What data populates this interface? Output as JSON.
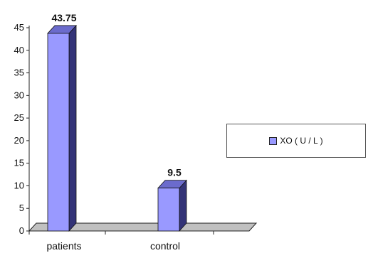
{
  "chart_data": {
    "type": "bar",
    "title": "",
    "xlabel": "",
    "ylabel": "",
    "categories": [
      "patients",
      "control"
    ],
    "series": [
      {
        "name": "XO ( U / L )",
        "values": [
          43.75,
          9.5
        ]
      }
    ],
    "data_labels": [
      "43.75",
      "9.5"
    ],
    "ylim": [
      0,
      45
    ],
    "yticks": [
      0,
      5,
      10,
      15,
      20,
      25,
      30,
      35,
      40,
      45
    ],
    "grid": false,
    "legend_position": "right",
    "colors": {
      "bar_front": "#9999ff",
      "bar_side": "#333377",
      "bar_top": "#6b6bcc",
      "floor": "#c0c0c0",
      "axis": "#222222"
    }
  }
}
